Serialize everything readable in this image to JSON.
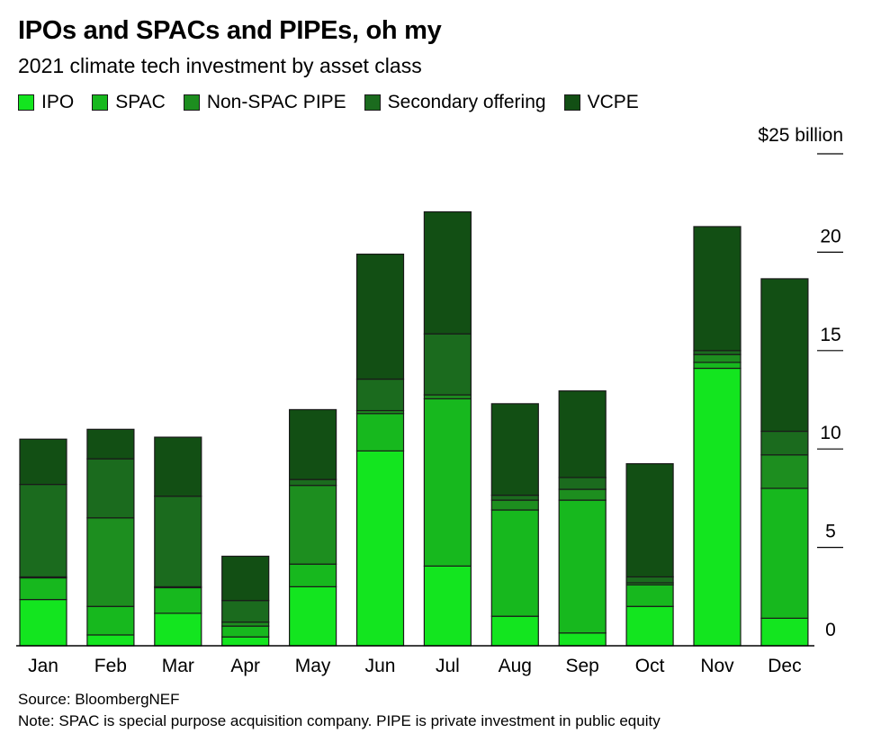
{
  "title": "IPOs and SPACs and PIPEs, oh my",
  "subtitle": "2021 climate tech investment by asset class",
  "source": "Source: BloombergNEF",
  "note": "Note: SPAC is special purpose acquisition company. PIPE is private investment in public equity",
  "colors": {
    "IPO": "#13e51f",
    "SPAC": "#17b81e",
    "Non-SPAC PIPE": "#1d8e1f",
    "Secondary offering": "#1b6b1e",
    "VCPE": "#124f14"
  },
  "chart_data": {
    "type": "bar",
    "stacked": true,
    "categories": [
      "Jan",
      "Feb",
      "Mar",
      "Apr",
      "May",
      "Jun",
      "Jul",
      "Aug",
      "Sep",
      "Oct",
      "Nov",
      "Dec"
    ],
    "series": [
      {
        "name": "IPO",
        "values": [
          2.35,
          0.55,
          1.65,
          0.45,
          3.0,
          9.9,
          4.05,
          1.5,
          0.65,
          2.0,
          14.1,
          1.4
        ]
      },
      {
        "name": "SPAC",
        "values": [
          1.1,
          1.45,
          1.3,
          0.55,
          1.15,
          1.9,
          8.5,
          5.4,
          6.75,
          1.1,
          0.3,
          6.6
        ]
      },
      {
        "name": "Non-SPAC PIPE",
        "values": [
          0.05,
          4.5,
          0.05,
          0.2,
          4.0,
          0.15,
          0.2,
          0.5,
          0.55,
          0.1,
          0.4,
          1.7
        ]
      },
      {
        "name": "Secondary offering",
        "values": [
          4.7,
          3.0,
          4.6,
          1.1,
          0.3,
          1.6,
          3.1,
          0.25,
          0.6,
          0.3,
          0.2,
          1.2
        ]
      },
      {
        "name": "VCPE",
        "values": [
          2.3,
          1.5,
          3.0,
          2.25,
          3.55,
          6.35,
          6.2,
          4.65,
          4.4,
          5.75,
          6.3,
          7.75
        ]
      }
    ],
    "y_axis": {
      "unit_label": "$25 billion",
      "ticks": [
        "0",
        "5",
        "10",
        "15",
        "20"
      ],
      "tick_values": [
        0,
        5,
        10,
        15,
        20,
        25
      ],
      "ylim": [
        0,
        25
      ],
      "position": "right"
    },
    "legend_position": "top-left",
    "grid": false
  }
}
